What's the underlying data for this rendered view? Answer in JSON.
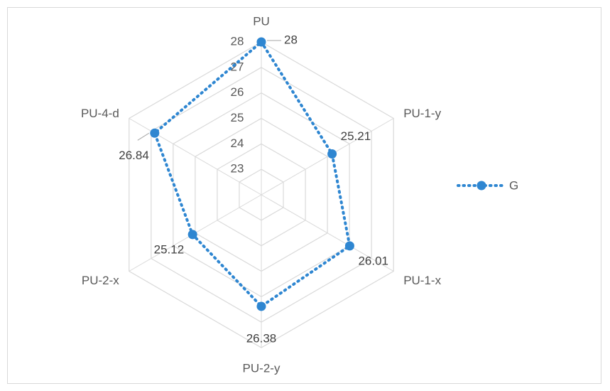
{
  "chart_data": {
    "type": "radar",
    "categories": [
      "PU",
      "PU-1-y",
      "PU-1-x",
      "PU-2-y",
      "PU-2-x",
      "PU-4-d"
    ],
    "series": [
      {
        "name": "G",
        "values": [
          28,
          25.21,
          26.01,
          26.38,
          25.12,
          26.84
        ],
        "color": "#2e86d1",
        "line_style": "dotted",
        "marker": "circle"
      }
    ],
    "r_ticks": [
      23,
      24,
      25,
      26,
      27,
      28
    ],
    "rlim": [
      22,
      28
    ],
    "data_labels": [
      "28",
      "25.21",
      "26.01",
      "26.38",
      "25.12",
      "26.84"
    ],
    "legend_position": "right",
    "grid": true,
    "grid_color": "#d9d9d9"
  }
}
